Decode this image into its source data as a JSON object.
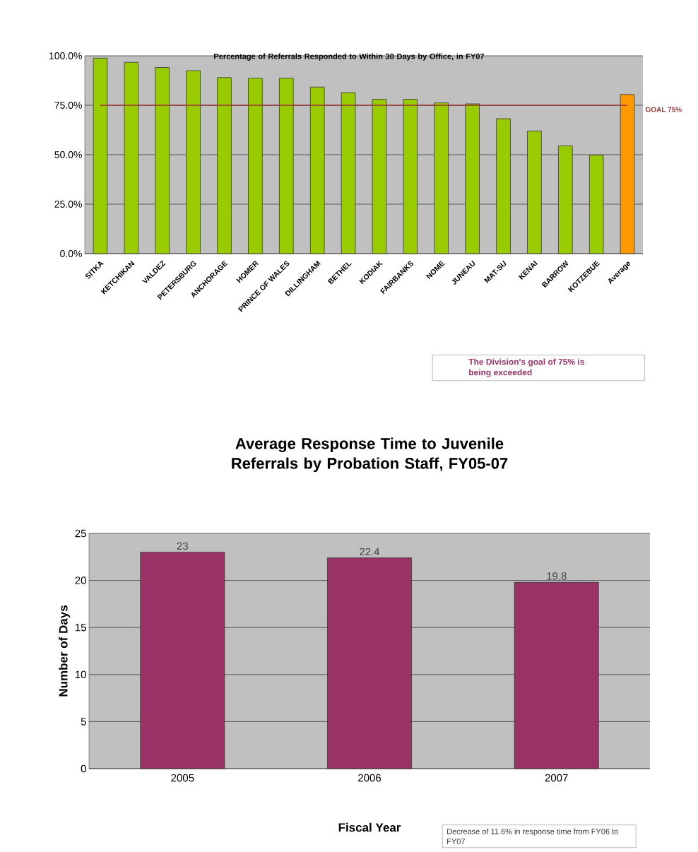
{
  "chart_data": [
    {
      "type": "bar",
      "title": "Percentage of Referrals Responded to Within 30 Days by Office, in FY07",
      "categories": [
        "SITKA",
        "KETCHIKAN",
        "VALDEZ",
        "PETERSBURG",
        "ANCHORAGE",
        "HOMER",
        "PRINCE OF WALES",
        "DILLINGHAM",
        "BETHEL",
        "KODIAK",
        "FAIRBANKS",
        "NOME",
        "JUNEAU",
        "MAT-SU",
        "KENAI",
        "BARROW",
        "KOTZEBUE",
        "Average"
      ],
      "values": [
        98.8,
        96.7,
        94.1,
        92.5,
        89,
        88.7,
        88.7,
        84.2,
        81.4,
        78,
        78,
        76.2,
        75.7,
        68.2,
        62,
        54.5,
        49.8,
        80.4
      ],
      "colors": [
        "#99cc00",
        "#99cc00",
        "#99cc00",
        "#99cc00",
        "#99cc00",
        "#99cc00",
        "#99cc00",
        "#99cc00",
        "#99cc00",
        "#99cc00",
        "#99cc00",
        "#99cc00",
        "#99cc00",
        "#99cc00",
        "#99cc00",
        "#99cc00",
        "#99cc00",
        "#ff9900"
      ],
      "ylim": [
        0,
        100
      ],
      "yticks": [
        {
          "value": 0,
          "label": "0.0%"
        },
        {
          "value": 25,
          "label": "25.0%"
        },
        {
          "value": 50,
          "label": "50.0%"
        },
        {
          "value": 75,
          "label": "75.0%"
        },
        {
          "value": 100,
          "label": "100.0%"
        }
      ],
      "grid": "y",
      "ref_lines": [
        {
          "axis": "y",
          "value": 75,
          "label": "GOAL 75%",
          "color": "#993333"
        }
      ],
      "annotations": [
        "The Division's goal of 75% is being exceeded"
      ]
    },
    {
      "type": "bar",
      "title": "Average Response Time to Juvenile Referrals by Probation Staff, FY05-07",
      "xlabel": "Fiscal Year",
      "ylabel": "Number of Days",
      "categories": [
        "2005",
        "2006",
        "2007"
      ],
      "values": [
        23,
        22.4,
        19.8
      ],
      "color": "#993366",
      "ylim": [
        0,
        25
      ],
      "yticks": [
        0,
        5,
        10,
        15,
        20,
        25
      ],
      "grid": "y",
      "data_labels": true,
      "annotations": [
        "Decrease of 11.6% in response time from FY06 to FY07"
      ]
    }
  ]
}
